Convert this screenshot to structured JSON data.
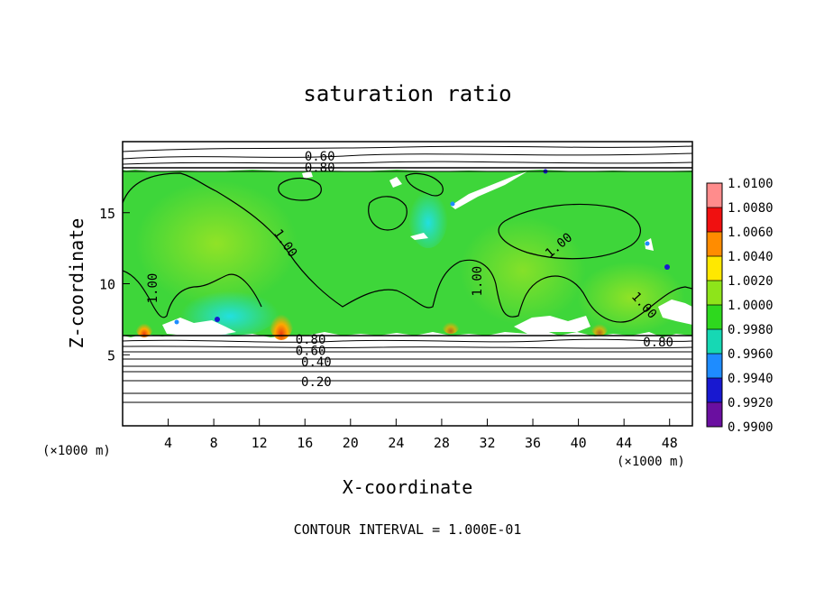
{
  "chart_data": {
    "type": "contour",
    "title": "saturation ratio",
    "xlabel": "X-coordinate",
    "ylabel": "Z-coordinate",
    "x_unit_left": "(×1000 m)",
    "x_unit_right": "(×1000 m)",
    "xlim": [
      0,
      50
    ],
    "ylim": [
      0,
      20
    ],
    "x_ticks": [
      4,
      8,
      12,
      16,
      20,
      24,
      28,
      32,
      36,
      40,
      44,
      48
    ],
    "y_ticks": [
      5,
      10,
      15
    ],
    "contour_interval_text": "CONTOUR INTERVAL = 1.000E-01",
    "contour_labels": [
      {
        "text": "0.60",
        "x": 17.3,
        "y": 19.0
      },
      {
        "text": "0.80",
        "x": 17.3,
        "y": 18.2
      },
      {
        "text": "1.00",
        "x": 14.0,
        "y": 13.0
      },
      {
        "text": "1.00",
        "x": 3.0,
        "y": 10.0
      },
      {
        "text": "1.00",
        "x": 31.5,
        "y": 10.5
      },
      {
        "text": "1.00",
        "x": 38.5,
        "y": 12.8
      },
      {
        "text": "1.00",
        "x": 45.5,
        "y": 8.6
      },
      {
        "text": "0.80",
        "x": 16.5,
        "y": 6.1
      },
      {
        "text": "0.60",
        "x": 16.5,
        "y": 5.3
      },
      {
        "text": "0.40",
        "x": 17.0,
        "y": 4.5
      },
      {
        "text": "0.20",
        "x": 17.0,
        "y": 3.1
      },
      {
        "text": "0.80",
        "x": 47.0,
        "y": 5.9
      }
    ],
    "colorbar": {
      "levels": [
        "0.9900",
        "0.9920",
        "0.9940",
        "0.9960",
        "0.9980",
        "1.0000",
        "1.0020",
        "1.0040",
        "1.0060",
        "1.0080",
        "1.0100"
      ],
      "colors": [
        "#6a0fa0",
        "#1818d0",
        "#1e8cff",
        "#16d8b4",
        "#2ed81e",
        "#8ee41a",
        "#ffe800",
        "#ff8c00",
        "#f01010",
        "#ff8c8c"
      ]
    },
    "field_colors": {
      "primary": "#3ed63a",
      "secondary": "#74e02c",
      "cyan": "#2ee6c8",
      "warm": "#ff9a00",
      "hot": "#e83a10"
    },
    "grid": false
  }
}
